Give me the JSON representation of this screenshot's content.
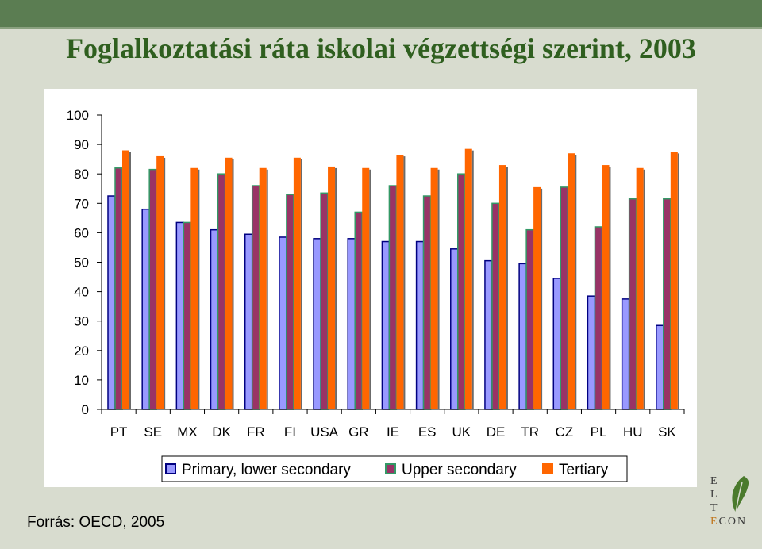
{
  "slide": {
    "title": "Foglalkoztatási ráta iskolai végzettségi szerint, 2003",
    "source": "Forrás: OECD, 2005"
  },
  "logo": {
    "letters": [
      "E",
      "L",
      "T",
      "E",
      "CON"
    ],
    "icon": "leaf-icon"
  },
  "chart_data": {
    "type": "bar",
    "categories": [
      "PT",
      "SE",
      "MX",
      "DK",
      "FR",
      "FI",
      "USA",
      "GR",
      "IE",
      "ES",
      "UK",
      "DE",
      "TR",
      "CZ",
      "PL",
      "HU",
      "SK"
    ],
    "series": [
      {
        "name": "Primary, lower secondary",
        "color": "#9999ff",
        "values": [
          72.5,
          68,
          63.5,
          61,
          59.5,
          58.5,
          58,
          58,
          57,
          57,
          54.5,
          50.5,
          49.5,
          44.5,
          38.5,
          37.5,
          28.5
        ]
      },
      {
        "name": "Upper secondary",
        "color": "#993366",
        "values": [
          82,
          81.5,
          63.5,
          80,
          76,
          73,
          73.5,
          67,
          76,
          72.5,
          80,
          70,
          61,
          75.5,
          62,
          71.5,
          71.5
        ]
      },
      {
        "name": "Tertiary",
        "color": "#ff6600",
        "values": [
          88,
          86,
          82,
          85.5,
          82,
          85.5,
          82.5,
          82,
          86.5,
          82,
          88.5,
          83,
          75.5,
          87,
          83,
          82,
          87.5
        ]
      }
    ],
    "yticks": [
      0,
      10,
      20,
      30,
      40,
      50,
      60,
      70,
      80,
      90,
      100
    ],
    "ylim": [
      0,
      100
    ],
    "grid": false,
    "legend_position": "bottom"
  }
}
